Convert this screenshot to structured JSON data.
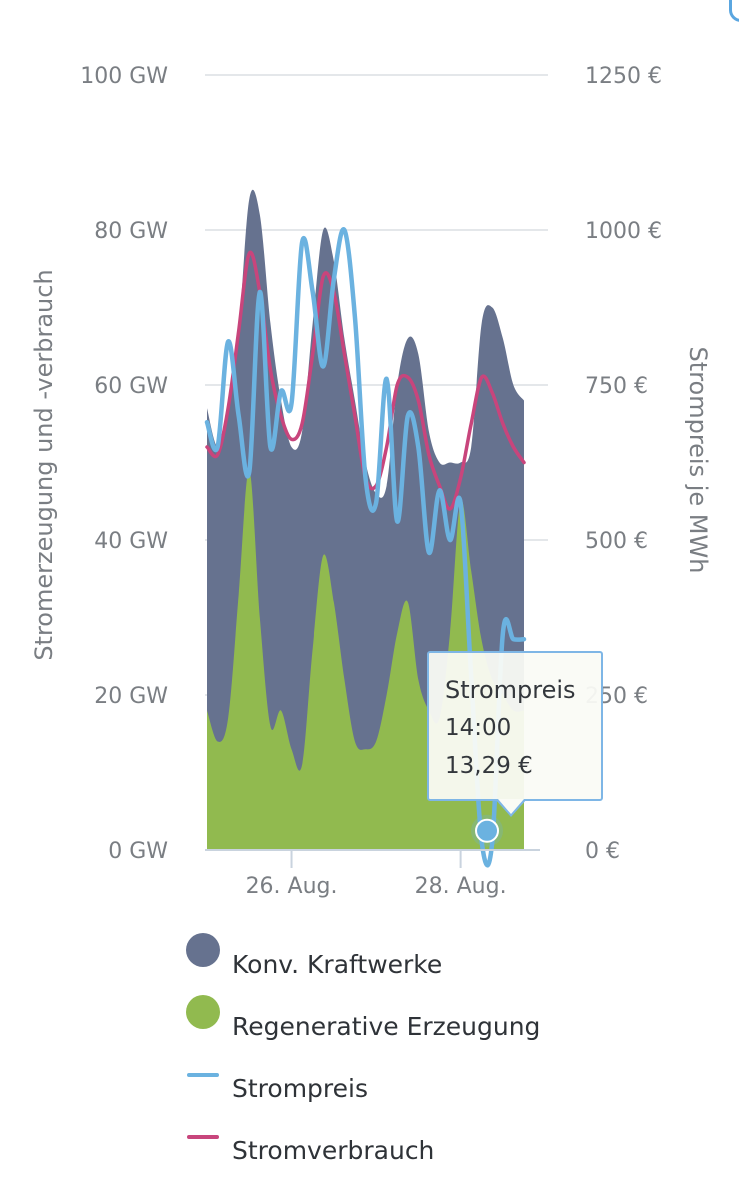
{
  "chart_data": {
    "type": "area",
    "y_left": {
      "label": "Stromerzeugung und -verbrauch",
      "ticks": [
        "0 GW",
        "20 GW",
        "40 GW",
        "60 GW",
        "80 GW",
        "100 GW"
      ],
      "range": [
        0,
        100
      ],
      "unit": "GW"
    },
    "y_right": {
      "label": "Strompreis je MWh",
      "ticks": [
        "0 €",
        "250 €",
        "500 €",
        "750 €",
        "1000 €",
        "1250 €"
      ],
      "range": [
        0,
        1250
      ],
      "unit": "€"
    },
    "x_ticks": [
      {
        "label": "26. Aug.",
        "day": 1.0
      },
      {
        "label": "28. Aug.",
        "day": 3.0
      }
    ],
    "x_range_days": [
      0,
      3.75
    ],
    "x": [
      0,
      0.125,
      0.25,
      0.375,
      0.5,
      0.625,
      0.75,
      0.875,
      1.0,
      1.125,
      1.25,
      1.375,
      1.5,
      1.625,
      1.75,
      1.875,
      2.0,
      2.125,
      2.25,
      2.375,
      2.5,
      2.625,
      2.75,
      2.875,
      3.0,
      3.125,
      3.25,
      3.375,
      3.5,
      3.625,
      3.75
    ],
    "series": [
      {
        "name": "Konv. Kraftwerke",
        "kind": "stacked-area-top",
        "unit": "GW",
        "color": "#66728f",
        "values": [
          57,
          52,
          56,
          67,
          84,
          82,
          68,
          58,
          52,
          54,
          68,
          80,
          76,
          66,
          58,
          50,
          46,
          47,
          60,
          66,
          64,
          54,
          50,
          50,
          50,
          52,
          68,
          70,
          66,
          60,
          58
        ]
      },
      {
        "name": "Regenerative Erzeugung",
        "kind": "area",
        "unit": "GW",
        "color": "#91ba4f",
        "values": [
          18,
          14,
          17,
          33,
          49,
          30,
          16,
          18,
          13,
          11,
          26,
          38,
          32,
          22,
          14,
          13,
          14,
          20,
          28,
          32,
          22,
          18,
          17,
          28,
          45,
          36,
          27,
          22,
          20,
          18,
          18
        ]
      },
      {
        "name": "Stromverbrauch",
        "kind": "line",
        "unit": "GW",
        "color": "#c8457c",
        "values": [
          52,
          51,
          57,
          67,
          77,
          72,
          62,
          56,
          53,
          55,
          64,
          74,
          72,
          64,
          56,
          48,
          47,
          52,
          60,
          61,
          58,
          51,
          47,
          44,
          48,
          55,
          61,
          59,
          55,
          52,
          50
        ]
      },
      {
        "name": "Strompreis",
        "kind": "line",
        "unit": "€/MWh",
        "color": "#6bb2e0",
        "values": [
          690,
          650,
          820,
          700,
          610,
          900,
          650,
          740,
          720,
          980,
          900,
          780,
          920,
          1000,
          860,
          600,
          560,
          760,
          530,
          700,
          650,
          480,
          580,
          500,
          560,
          280,
          13.29,
          13.29,
          350,
          340,
          340
        ]
      }
    ],
    "tooltip": {
      "title": "Strompreis",
      "time": "14:00",
      "value": "13,29 €"
    },
    "legend": [
      {
        "label": "Konv. Kraftwerke",
        "symbol": "circle",
        "color": "#66728f"
      },
      {
        "label": "Regenerative Erzeugung",
        "symbol": "circle",
        "color": "#91ba4f"
      },
      {
        "label": "Strompreis",
        "symbol": "line",
        "color": "#6bb2e0"
      },
      {
        "label": "Stromverbrauch",
        "symbol": "line",
        "color": "#c8457c"
      }
    ],
    "grid": true,
    "legend_position": "bottom"
  }
}
